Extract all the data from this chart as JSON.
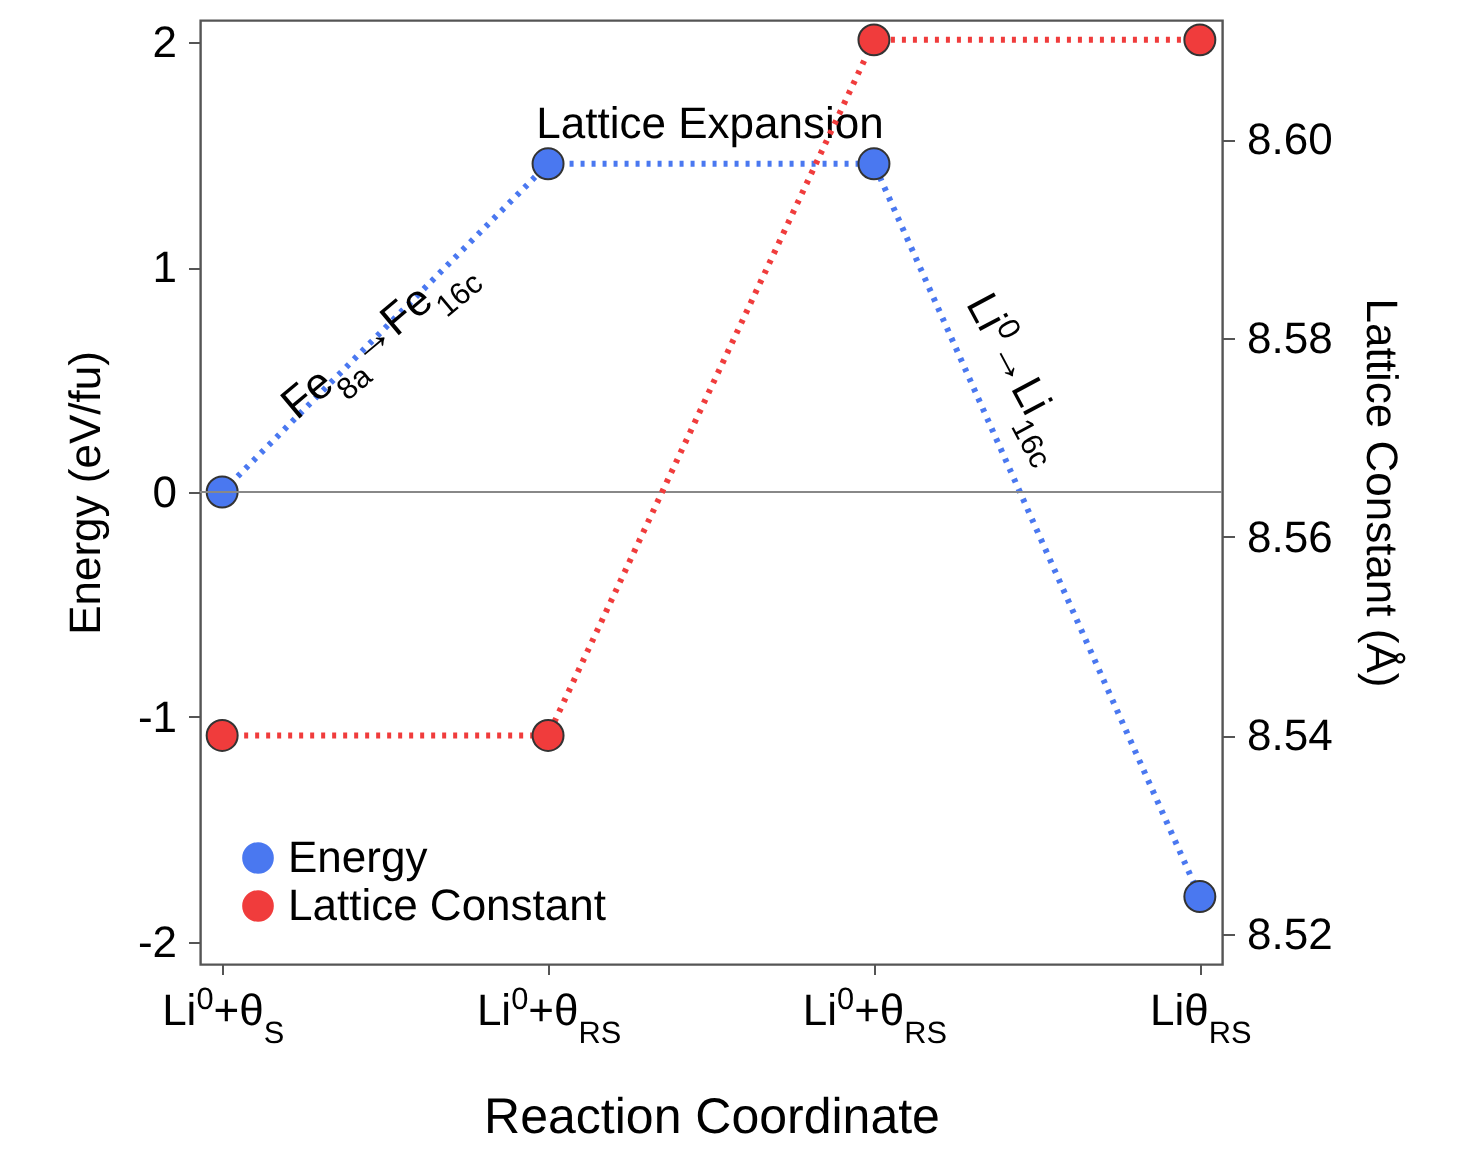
{
  "chart_data": {
    "type": "line",
    "xlabel": "Reaction Coordinate",
    "ylabel": "Energy (eV/fu)",
    "y2label": "Lattice Constant (Å)",
    "categories": [
      "Li$^{0}$+θ$_{S}$",
      "Li$^{0}$+θ$_{RS}$",
      "Li$^{0}$+θ$_{RS}$",
      "Liθ$_{RS}$"
    ],
    "series": [
      {
        "name": "Energy",
        "color": "#4a78f0",
        "values": [
          0,
          1.46,
          1.46,
          -1.8
        ]
      },
      {
        "name": "Lattice Constant",
        "color": "#f03c3c",
        "values": [
          8.54,
          8.54,
          8.61,
          8.61
        ],
        "axis": "y2"
      }
    ],
    "ylim": [
      -2.1,
      2.1
    ],
    "yticks": [
      -2,
      -1,
      0,
      1,
      2
    ],
    "y2lim": [
      8.517,
      8.612
    ],
    "y2ticks": [
      {
        "value": 8.52,
        "label": "8.52"
      },
      {
        "value": 8.54,
        "label": "8.54"
      },
      {
        "value": 8.56,
        "label": "8.56"
      },
      {
        "value": 8.58,
        "label": "8.58"
      },
      {
        "value": 8.6,
        "label": "8.60"
      }
    ],
    "ref_lines": [
      {
        "axis": "y",
        "value": 0,
        "color": "#888888"
      }
    ],
    "annotations": [
      "Fe$_{8a}$→Fe$_{16c}$",
      "Lattice Expansion",
      "Li$^{0}$→Li$_{16c}$"
    ],
    "marker": "circle",
    "line_style": "dotted",
    "grid": false,
    "legend": "bottom left"
  }
}
